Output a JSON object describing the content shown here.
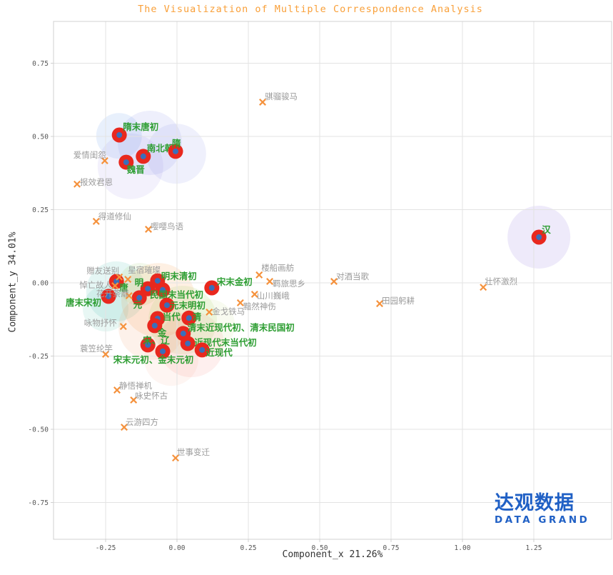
{
  "title": "The Visualization of Multiple Correspondence Analysis",
  "logo": {
    "cn": "达观数据",
    "en": "DATA GRAND"
  },
  "chart_data": {
    "type": "scatter",
    "title": "The Visualization of Multiple Correspondence Analysis",
    "xlabel": "Component_x 21.26%",
    "ylabel": "Component_y 34.01%",
    "xlim": [
      -0.4325,
      1.5225
    ],
    "ylim": [
      -0.8756,
      0.8927
    ],
    "xticks": [
      -0.25,
      0,
      0.25,
      0.5,
      0.75,
      1,
      1.25
    ],
    "yticks": [
      -0.75,
      -0.5,
      -0.25,
      0,
      0.25,
      0.5,
      0.75
    ],
    "grid": true,
    "legend": "none",
    "colors": {
      "title": "#f9a03a",
      "dynasty_dot": "#e8281e",
      "dynasty_dot_center": "#3a6fba",
      "dynasty_label": "#2e9e33",
      "theme_marker": "#f5923d",
      "theme_label": "#9b9b9b",
      "grid": "#e3e3e3",
      "border": "#d0d0d0",
      "tick_label": "#555555",
      "logo": "#2060c5"
    },
    "series": [
      {
        "name": "dynasties",
        "marker": "dot",
        "color": "#e8281e",
        "points": [
          {
            "label": "隋末唐初",
            "x": -0.202,
            "y": 0.505,
            "ldx": 5,
            "ldy": -7,
            "anchor": "start"
          },
          {
            "label": "南北朝",
            "x": -0.118,
            "y": 0.432,
            "ldx": 5,
            "ldy": -7,
            "anchor": "start"
          },
          {
            "label": "隋",
            "x": -0.005,
            "y": 0.449,
            "ldx": -5,
            "ldy": -7,
            "anchor": "start"
          },
          {
            "label": "魏晋",
            "x": -0.178,
            "y": 0.412,
            "ldx": 1,
            "ldy": 15,
            "anchor": "start"
          },
          {
            "label": "汉",
            "x": 1.268,
            "y": 0.156,
            "ldx": 4,
            "ldy": -6,
            "anchor": "start"
          },
          {
            "label": "唐",
            "x": -0.212,
            "y": 0.005,
            "ldx": 4,
            "ldy": 13,
            "anchor": "start"
          },
          {
            "label": "明",
            "x": -0.102,
            "y": -0.02,
            "ldx": -6,
            "ldy": -4,
            "anchor": "end"
          },
          {
            "label": "明末清初",
            "x": -0.068,
            "y": 0.007,
            "ldx": 5,
            "ldy": -2,
            "anchor": "start"
          },
          {
            "label": "宋末金初",
            "x": 0.122,
            "y": -0.017,
            "ldx": 7,
            "ldy": -4,
            "anchor": "start"
          },
          {
            "label": "唐末宋初",
            "x": -0.24,
            "y": -0.046,
            "ldx": -10,
            "ldy": 13,
            "anchor": "end"
          },
          {
            "label": "元",
            "x": -0.132,
            "y": -0.051,
            "ldx": 4,
            "ldy": 14,
            "anchor": "end"
          },
          {
            "label": "民国末当代初",
            "x": -0.05,
            "y": -0.024,
            "ldx": -18,
            "ldy": 11,
            "anchor": "start"
          },
          {
            "label": "元末明初",
            "x": -0.035,
            "y": -0.076,
            "ldx": 4,
            "ldy": 5,
            "anchor": "start"
          },
          {
            "label": "当代",
            "x": -0.068,
            "y": -0.122,
            "ldx": 7,
            "ldy": 2,
            "anchor": "start"
          },
          {
            "label": "清",
            "x": 0.042,
            "y": -0.12,
            "ldx": 5,
            "ldy": 3,
            "anchor": "start"
          },
          {
            "label": "金",
            "x": -0.078,
            "y": -0.146,
            "ldx": 4,
            "ldy": 14,
            "anchor": "start"
          },
          {
            "label": "清末近现代初、清末民国初",
            "x": 0.022,
            "y": -0.173,
            "ldx": 6,
            "ldy": -4,
            "anchor": "start"
          },
          {
            "label": "宋、辽",
            "x": -0.102,
            "y": -0.212,
            "ldx": -7,
            "ldy": -2,
            "anchor": "start"
          },
          {
            "label": "近现代末当代初",
            "x": 0.038,
            "y": -0.207,
            "ldx": 9,
            "ldy": 3,
            "anchor": "start"
          },
          {
            "label": "近现代",
            "x": 0.088,
            "y": -0.229,
            "ldx": 5,
            "ldy": 8,
            "anchor": "start"
          },
          {
            "label": "宋末元初、金末元初",
            "x": -0.05,
            "y": -0.234,
            "ldx": -13,
            "ldy": 16,
            "anchor": "middle"
          }
        ]
      },
      {
        "name": "themes",
        "marker": "x",
        "color": "#f5923d",
        "points": [
          {
            "label": "爱情闺怨",
            "x": -0.253,
            "y": 0.417,
            "ldx": 2,
            "ldy": -4,
            "anchor": "end"
          },
          {
            "label": "报效君恩",
            "x": -0.35,
            "y": 0.337,
            "ldx": 4,
            "ldy": 1,
            "anchor": "start"
          },
          {
            "label": "得道修仙",
            "x": -0.283,
            "y": 0.21,
            "ldx": 3,
            "ldy": -3,
            "anchor": "start"
          },
          {
            "label": "嘤嘤鸟语",
            "x": -0.1,
            "y": 0.183,
            "ldx": 3,
            "ldy": 0,
            "anchor": "start"
          },
          {
            "label": "骐骝骏马",
            "x": 0.3,
            "y": 0.617,
            "ldx": 3,
            "ldy": -4,
            "anchor": "start"
          },
          {
            "label": "赠友送别",
            "x": -0.202,
            "y": 0.02,
            "ldx": 0,
            "ldy": -5,
            "anchor": "end"
          },
          {
            "label": "星宿璀璨",
            "x": -0.172,
            "y": 0.012,
            "ldx": 0,
            "ldy": -9,
            "anchor": "start"
          },
          {
            "label": "悼亡故人",
            "x": -0.217,
            "y": -0.01,
            "ldx": -4,
            "ldy": 3,
            "anchor": "end"
          },
          {
            "label": "花开荼蘼",
            "x": -0.168,
            "y": -0.044,
            "ldx": 0,
            "ldy": 1,
            "anchor": "end"
          },
          {
            "label": "咏物抒怀",
            "x": -0.188,
            "y": -0.149,
            "ldx": -9,
            "ldy": -1,
            "anchor": "end"
          },
          {
            "label": "蓑笠纶竿",
            "x": -0.25,
            "y": -0.244,
            "ldx": 10,
            "ldy": -4,
            "anchor": "end"
          },
          {
            "label": "静悟禅机",
            "x": -0.21,
            "y": -0.366,
            "ldx": 3,
            "ldy": -2,
            "anchor": "start"
          },
          {
            "label": "咏史怀古",
            "x": -0.152,
            "y": -0.4,
            "ldx": 2,
            "ldy": -2,
            "anchor": "start"
          },
          {
            "label": "云游四方",
            "x": -0.185,
            "y": -0.493,
            "ldx": 2,
            "ldy": -3,
            "anchor": "start"
          },
          {
            "label": "世事变迁",
            "x": -0.005,
            "y": -0.598,
            "ldx": 2,
            "ldy": -4,
            "anchor": "start"
          },
          {
            "label": "金戈铁马",
            "x": 0.113,
            "y": -0.1,
            "ldx": 4,
            "ldy": 3,
            "anchor": "start"
          },
          {
            "label": "楼船画舫",
            "x": 0.288,
            "y": 0.027,
            "ldx": 3,
            "ldy": -6,
            "anchor": "start"
          },
          {
            "label": "羁旅思乡",
            "x": 0.325,
            "y": 0.005,
            "ldx": 4,
            "ldy": 7,
            "anchor": "start"
          },
          {
            "label": "山川巍峨",
            "x": 0.272,
            "y": -0.039,
            "ldx": 3,
            "ldy": 6,
            "anchor": "start"
          },
          {
            "label": "黯然神伤",
            "x": 0.222,
            "y": -0.068,
            "ldx": 4,
            "ldy": 9,
            "anchor": "start"
          },
          {
            "label": "对酒当歌",
            "x": 0.55,
            "y": 0.005,
            "ldx": 3,
            "ldy": -3,
            "anchor": "start"
          },
          {
            "label": "田园躬耕",
            "x": 0.71,
            "y": -0.071,
            "ldx": 3,
            "ldy": 0,
            "anchor": "start"
          },
          {
            "label": "壮怀激烈",
            "x": 1.073,
            "y": -0.015,
            "ldx": 2,
            "ldy": -4,
            "anchor": "start"
          }
        ]
      }
    ],
    "clusters": [
      {
        "x": -0.203,
        "y": 0.502,
        "r": 32,
        "color": "rgba(110,160,235,0.16)"
      },
      {
        "x": -0.095,
        "y": 0.478,
        "r": 45,
        "color": "rgba(125,135,230,0.13)"
      },
      {
        "x": -0.003,
        "y": 0.441,
        "r": 42,
        "color": "rgba(125,135,230,0.12)"
      },
      {
        "x": -0.163,
        "y": 0.398,
        "r": 46,
        "color": "rgba(135,120,225,0.10)"
      },
      {
        "x": 1.268,
        "y": 0.156,
        "r": 44,
        "color": "rgba(140,115,220,0.15)"
      },
      {
        "x": -0.213,
        "y": -0.029,
        "r": 42,
        "color": "rgba(0,165,150,0.10)"
      },
      {
        "x": -0.25,
        "y": -0.088,
        "r": 32,
        "color": "rgba(0,165,130,0.09)"
      },
      {
        "x": -0.13,
        "y": -0.005,
        "r": 30,
        "color": "rgba(150,200,90,0.12)"
      },
      {
        "x": -0.065,
        "y": -0.059,
        "r": 52,
        "color": "rgba(245,150,60,0.14)"
      },
      {
        "x": -0.09,
        "y": -0.151,
        "r": 46,
        "color": "rgba(240,140,80,0.12)"
      },
      {
        "x": 0.02,
        "y": -0.127,
        "r": 48,
        "color": "rgba(180,215,120,0.18)"
      },
      {
        "x": 0.05,
        "y": -0.21,
        "r": 46,
        "color": "rgba(245,130,120,0.13)"
      },
      {
        "x": -0.02,
        "y": -0.259,
        "r": 38,
        "color": "rgba(245,165,140,0.11)"
      },
      {
        "x": 0.113,
        "y": -0.144,
        "r": 36,
        "color": "rgba(205,230,150,0.14)"
      }
    ]
  }
}
